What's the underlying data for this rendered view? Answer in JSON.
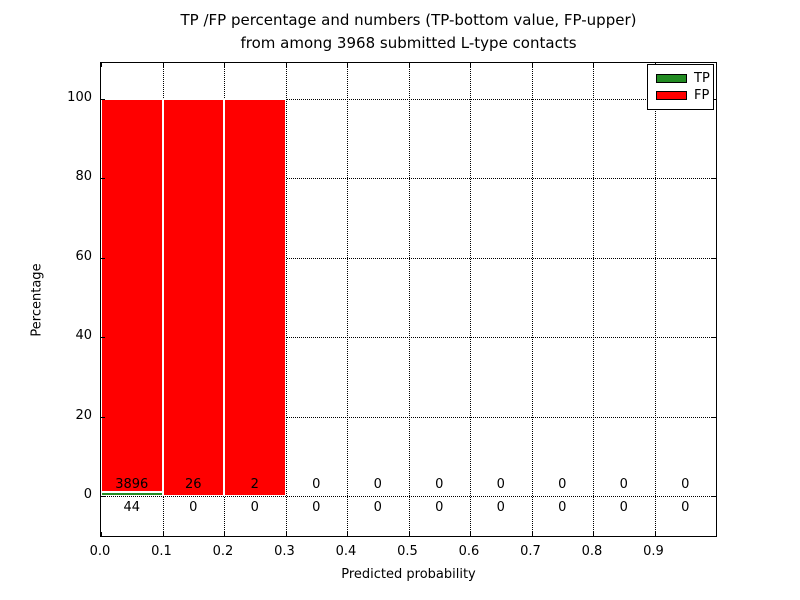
{
  "chart_data": {
    "type": "bar",
    "stacked": true,
    "title_line1": "TP /FP percentage and numbers (TP-bottom value, FP-upper)",
    "title_line2": "from among 3968 submitted L-type contacts",
    "xlabel": "Predicted probability",
    "ylabel": "Percentage",
    "total_contacts": 3968,
    "xlim": [
      0.0,
      1.0
    ],
    "ylim": [
      -10,
      109
    ],
    "grid": "dotted",
    "bin_edges": [
      0.0,
      0.1,
      0.2,
      0.3,
      0.4,
      0.5,
      0.6,
      0.7,
      0.8,
      0.9,
      1.0
    ],
    "xtick_labels": [
      "0.0",
      "0.1",
      "0.2",
      "0.3",
      "0.4",
      "0.5",
      "0.6",
      "0.7",
      "0.8",
      "0.9"
    ],
    "ytick_values": [
      0,
      20,
      40,
      60,
      80,
      100
    ],
    "ytick_labels": [
      "0",
      "20",
      "40",
      "60",
      "80",
      "100"
    ],
    "series": [
      {
        "name": "TP",
        "color": "#228b22",
        "counts": [
          44,
          0,
          0,
          0,
          0,
          0,
          0,
          0,
          0,
          0
        ],
        "percent": [
          1.12,
          0,
          0,
          0,
          0,
          0,
          0,
          0,
          0,
          0
        ]
      },
      {
        "name": "FP",
        "color": "#ff0000",
        "counts": [
          3896,
          26,
          2,
          0,
          0,
          0,
          0,
          0,
          0,
          0
        ],
        "percent": [
          98.88,
          100,
          100,
          0,
          0,
          0,
          0,
          0,
          0,
          0
        ]
      }
    ],
    "legend": {
      "position": "upper right",
      "entries": [
        {
          "label": "TP",
          "color": "#228b22"
        },
        {
          "label": "FP",
          "color": "#ff0000"
        }
      ]
    }
  }
}
